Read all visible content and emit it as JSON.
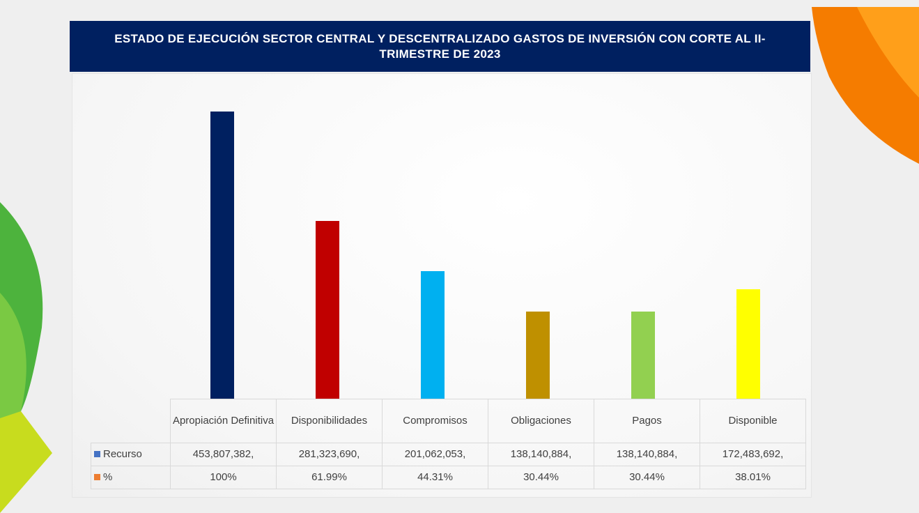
{
  "chart_data": {
    "type": "bar",
    "title": "ESTADO DE EJECUCIÓN SECTOR CENTRAL Y DESCENTRALIZADO GASTOS DE INVERSIÓN  CON CORTE AL II- TRIMESTRE DE 2023",
    "categories": [
      "Apropiación Definitiva",
      "Disponibilidades",
      "Compromisos",
      "Obligaciones",
      "Pagos",
      "Disponible"
    ],
    "colors": [
      "#002060",
      "#c00000",
      "#00b0f0",
      "#bf9000",
      "#92d050",
      "#ffff00"
    ],
    "series": [
      {
        "name": "Recurso",
        "color": "#4472c4",
        "values": [
          453807382,
          281323690,
          201062053,
          138140884,
          138140884,
          172483692
        ],
        "value_labels": [
          "453,807,382,",
          "281,323,690,",
          "201,062,053,",
          "138,140,884,",
          "138,140,884,",
          "172,483,692,"
        ]
      },
      {
        "name": "%",
        "color": "#ed7d31",
        "values": [
          100,
          61.99,
          44.31,
          30.44,
          30.44,
          38.01
        ],
        "value_labels": [
          "100%",
          "61.99%",
          "44.31%",
          "30.44%",
          "30.44%",
          "38.01%"
        ]
      }
    ]
  }
}
